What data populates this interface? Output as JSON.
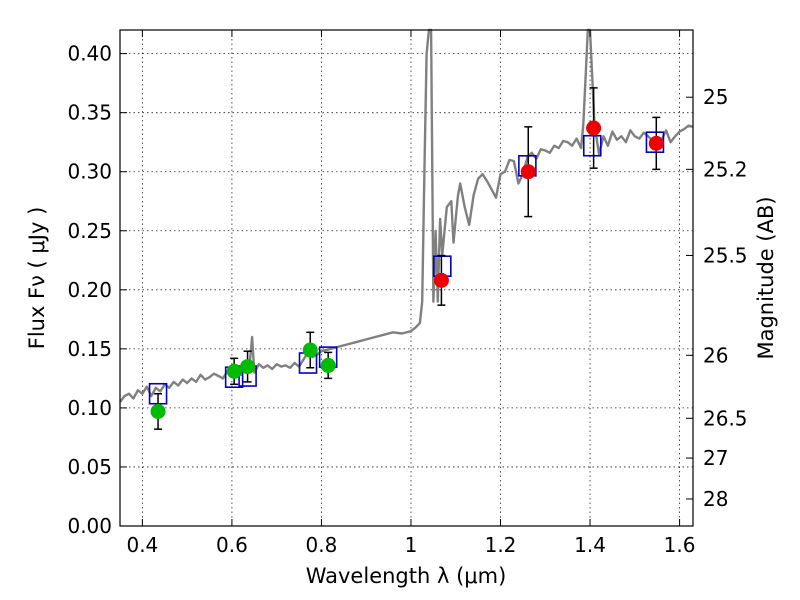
{
  "chart_data": {
    "type": "scatter",
    "title": "",
    "xlabel": "Wavelength  λ (μm)",
    "ylabel": "Flux  Fν  ( μJy )",
    "y2label": "Magnitude (AB)",
    "xlim": [
      0.35,
      1.63
    ],
    "ylim": [
      0.0,
      0.42
    ],
    "grid": true,
    "x_ticks": [
      0.4,
      0.6,
      0.8,
      1.0,
      1.2,
      1.4,
      1.6
    ],
    "x_tick_labels": [
      "0.4",
      "0.6",
      "0.8",
      "1",
      "1.2",
      "1.4",
      "1.6"
    ],
    "y_ticks": [
      0.0,
      0.05,
      0.1,
      0.15,
      0.2,
      0.25,
      0.3,
      0.35,
      0.4
    ],
    "y_tick_labels": [
      "0.00",
      "0.05",
      "0.10",
      "0.15",
      "0.20",
      "0.25",
      "0.30",
      "0.35",
      "0.40"
    ],
    "magnitude_ticks": [
      {
        "label": "25",
        "mag": 25
      },
      {
        "label": "25.2",
        "mag": 25.2
      },
      {
        "label": "25.5",
        "mag": 25.5
      },
      {
        "label": "26",
        "mag": 26
      },
      {
        "label": "26.5",
        "mag": 26.5
      },
      {
        "label": "27",
        "mag": 27
      },
      {
        "label": "28",
        "mag": 28
      }
    ],
    "colors": {
      "model_line": "#808080",
      "model_box": "#0000cc",
      "green_points": "#00bb00",
      "red_points": "#ee0000",
      "error_bars": "#000000"
    },
    "series": [
      {
        "style": "line",
        "x": [
          0.35,
          0.36,
          0.37,
          0.38,
          0.39,
          0.4,
          0.41,
          0.42,
          0.43,
          0.44,
          0.45,
          0.46,
          0.47,
          0.48,
          0.49,
          0.5,
          0.51,
          0.52,
          0.53,
          0.54,
          0.55,
          0.56,
          0.57,
          0.58,
          0.59,
          0.6,
          0.61,
          0.62,
          0.63,
          0.64,
          0.645,
          0.65,
          0.66,
          0.67,
          0.68,
          0.69,
          0.7,
          0.71,
          0.72,
          0.73,
          0.74,
          0.75,
          0.76,
          0.77,
          0.78,
          0.79,
          0.8,
          0.82,
          0.84,
          0.86,
          0.88,
          0.9,
          0.92,
          0.94,
          0.96,
          0.98,
          1.0,
          1.01,
          1.02,
          1.025,
          1.03,
          1.035,
          1.04,
          1.045,
          1.05,
          1.055,
          1.06,
          1.065,
          1.07,
          1.08,
          1.09,
          1.095,
          1.1,
          1.105,
          1.11,
          1.12,
          1.13,
          1.14,
          1.15,
          1.16,
          1.17,
          1.18,
          1.19,
          1.2,
          1.21,
          1.22,
          1.23,
          1.24,
          1.25,
          1.26,
          1.27,
          1.28,
          1.29,
          1.3,
          1.31,
          1.32,
          1.33,
          1.34,
          1.35,
          1.36,
          1.37,
          1.38,
          1.385,
          1.39,
          1.395,
          1.4,
          1.41,
          1.42,
          1.43,
          1.44,
          1.45,
          1.46,
          1.47,
          1.48,
          1.49,
          1.5,
          1.51,
          1.52,
          1.53,
          1.54,
          1.55,
          1.56,
          1.57,
          1.58,
          1.59,
          1.6,
          1.61,
          1.62,
          1.63
        ],
        "y": [
          0.105,
          0.11,
          0.112,
          0.108,
          0.115,
          0.112,
          0.118,
          0.11,
          0.117,
          0.114,
          0.12,
          0.117,
          0.122,
          0.119,
          0.124,
          0.121,
          0.125,
          0.122,
          0.128,
          0.124,
          0.126,
          0.129,
          0.127,
          0.125,
          0.131,
          0.129,
          0.13,
          0.128,
          0.136,
          0.138,
          0.16,
          0.13,
          0.137,
          0.134,
          0.136,
          0.133,
          0.137,
          0.135,
          0.136,
          0.134,
          0.138,
          0.135,
          0.141,
          0.147,
          0.143,
          0.145,
          0.148,
          0.15,
          0.152,
          0.154,
          0.156,
          0.158,
          0.16,
          0.162,
          0.164,
          0.163,
          0.165,
          0.168,
          0.172,
          0.19,
          0.3,
          0.4,
          0.42,
          0.42,
          0.19,
          0.25,
          0.19,
          0.26,
          0.23,
          0.27,
          0.275,
          0.24,
          0.26,
          0.28,
          0.29,
          0.27,
          0.255,
          0.28,
          0.294,
          0.298,
          0.292,
          0.285,
          0.278,
          0.298,
          0.3,
          0.31,
          0.309,
          0.29,
          0.298,
          0.312,
          0.316,
          0.311,
          0.319,
          0.318,
          0.316,
          0.322,
          0.32,
          0.326,
          0.325,
          0.322,
          0.328,
          0.32,
          0.34,
          0.38,
          0.42,
          0.42,
          0.34,
          0.315,
          0.33,
          0.322,
          0.334,
          0.327,
          0.33,
          0.325,
          0.335,
          0.33,
          0.328,
          0.333,
          0.33,
          0.326,
          0.32,
          0.327,
          0.335,
          0.325,
          0.33,
          0.334,
          0.336,
          0.339,
          0.338
        ]
      },
      {
        "style": "box",
        "x": [
          0.435,
          0.605,
          0.635,
          0.77,
          0.815,
          1.07,
          1.26,
          1.405,
          1.545
        ],
        "y": [
          0.112,
          0.126,
          0.127,
          0.138,
          0.143,
          0.22,
          0.305,
          0.322,
          0.325
        ]
      },
      {
        "style": "point",
        "x": [
          0.435,
          0.605,
          0.635,
          0.775,
          0.815
        ],
        "y": [
          0.097,
          0.131,
          0.135,
          0.149,
          0.136
        ],
        "yerr": [
          0.015,
          0.011,
          0.013,
          0.015,
          0.011
        ]
      },
      {
        "style": "point",
        "x": [
          1.068,
          1.262,
          1.408,
          1.548
        ],
        "y": [
          0.208,
          0.3,
          0.337,
          0.324
        ],
        "yerr": [
          0.021,
          0.038,
          0.034,
          0.022
        ]
      }
    ]
  }
}
